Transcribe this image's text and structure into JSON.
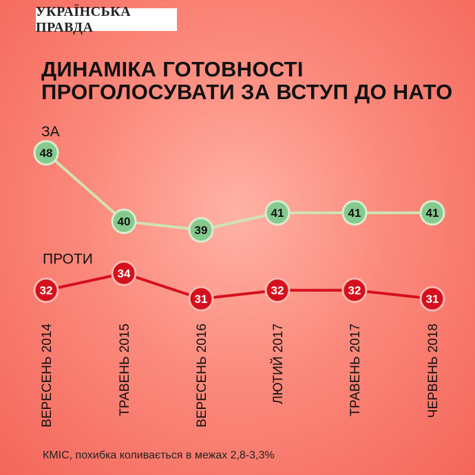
{
  "brand": {
    "logo_text": "УКРАЇНСЬКА ПРАВДА"
  },
  "header": {
    "title_line1": "ДИНАМІКА ГОТОВНОСТІ",
    "title_line2": "ПРОГОЛОСУВАТИ ЗА ВСТУП ДО НАТО"
  },
  "footer": {
    "source": "КМІС, похибка коливається в межах 2,8-3,3%"
  },
  "colors": {
    "for_line": "#cfe3b4",
    "for_marker": "#86c98e",
    "for_marker_stroke": "#d7eed0",
    "against_line": "#d5101c",
    "against_marker": "#d5101c",
    "against_marker_stroke": "#f5b8b0"
  },
  "chart_data": {
    "type": "line",
    "title": "ДИНАМІКА ГОТОВНОСТІ ПРОГОЛОСУВАТИ ЗА ВСТУП ДО НАТО",
    "categories": [
      "ВЕРЕСЕНЬ 2014",
      "ТРАВЕНЬ 2015",
      "ВЕРЕСЕНЬ 2016",
      "ЛЮТИЙ 2017",
      "ТРАВЕНЬ 2017",
      "ЧЕРВЕНЬ 2018"
    ],
    "series": [
      {
        "name": "ЗА",
        "values": [
          48,
          40,
          39,
          41,
          41,
          41
        ]
      },
      {
        "name": "ПРОТИ",
        "values": [
          32,
          34,
          31,
          32,
          32,
          31
        ]
      }
    ],
    "grid": false,
    "legend": "inline-left",
    "xlabel": "",
    "ylabel": ""
  }
}
